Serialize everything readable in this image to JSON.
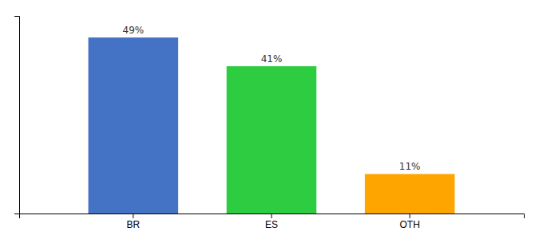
{
  "chart_data": {
    "type": "bar",
    "categories": [
      "BR",
      "ES",
      "OTH"
    ],
    "values": [
      49,
      41,
      11
    ],
    "value_labels": [
      "49%",
      "41%",
      "11%"
    ],
    "colors": [
      "#4472C4",
      "#2ECC40",
      "#FFA500"
    ],
    "ylim": [
      0,
      55
    ],
    "data_labels": true,
    "tick_labels": "x",
    "grid": false
  }
}
